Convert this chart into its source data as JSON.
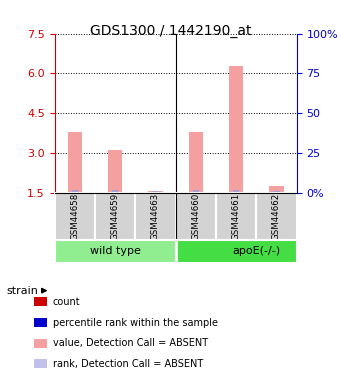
{
  "title": "GDS1300 / 1442190_at",
  "samples": [
    "GSM44658",
    "GSM44659",
    "GSM44663",
    "GSM44660",
    "GSM44661",
    "GSM44662"
  ],
  "group_labels": [
    "wild type",
    "apoE(-/-)"
  ],
  "value_bars": [
    3.8,
    3.1,
    1.55,
    3.8,
    6.3,
    1.75
  ],
  "rank_bars": [
    0.08,
    0.08,
    0.06,
    0.08,
    0.08,
    0.06
  ],
  "ylim": [
    1.5,
    7.5
  ],
  "yticks_left": [
    1.5,
    3.0,
    4.5,
    6.0,
    7.5
  ],
  "yticks_right_vals": [
    0,
    25,
    50,
    75,
    100
  ],
  "yticks_right_labels": [
    "0%",
    "25",
    "50",
    "75",
    "100%"
  ],
  "value_bar_color": "#f4a0a0",
  "rank_bar_color": "#a0a0d8",
  "group_colors": [
    "#90ee90",
    "#44dd44"
  ],
  "sample_bg_color": "#d3d3d3",
  "left_axis_color": "#cc0000",
  "right_axis_color": "#0000cc",
  "grid_color": "#000000",
  "legend_items": [
    {
      "label": "count",
      "color": "#cc0000"
    },
    {
      "label": "percentile rank within the sample",
      "color": "#0000cc"
    },
    {
      "label": "value, Detection Call = ABSENT",
      "color": "#f4a0a0"
    },
    {
      "label": "rank, Detection Call = ABSENT",
      "color": "#c0c0e8"
    }
  ]
}
